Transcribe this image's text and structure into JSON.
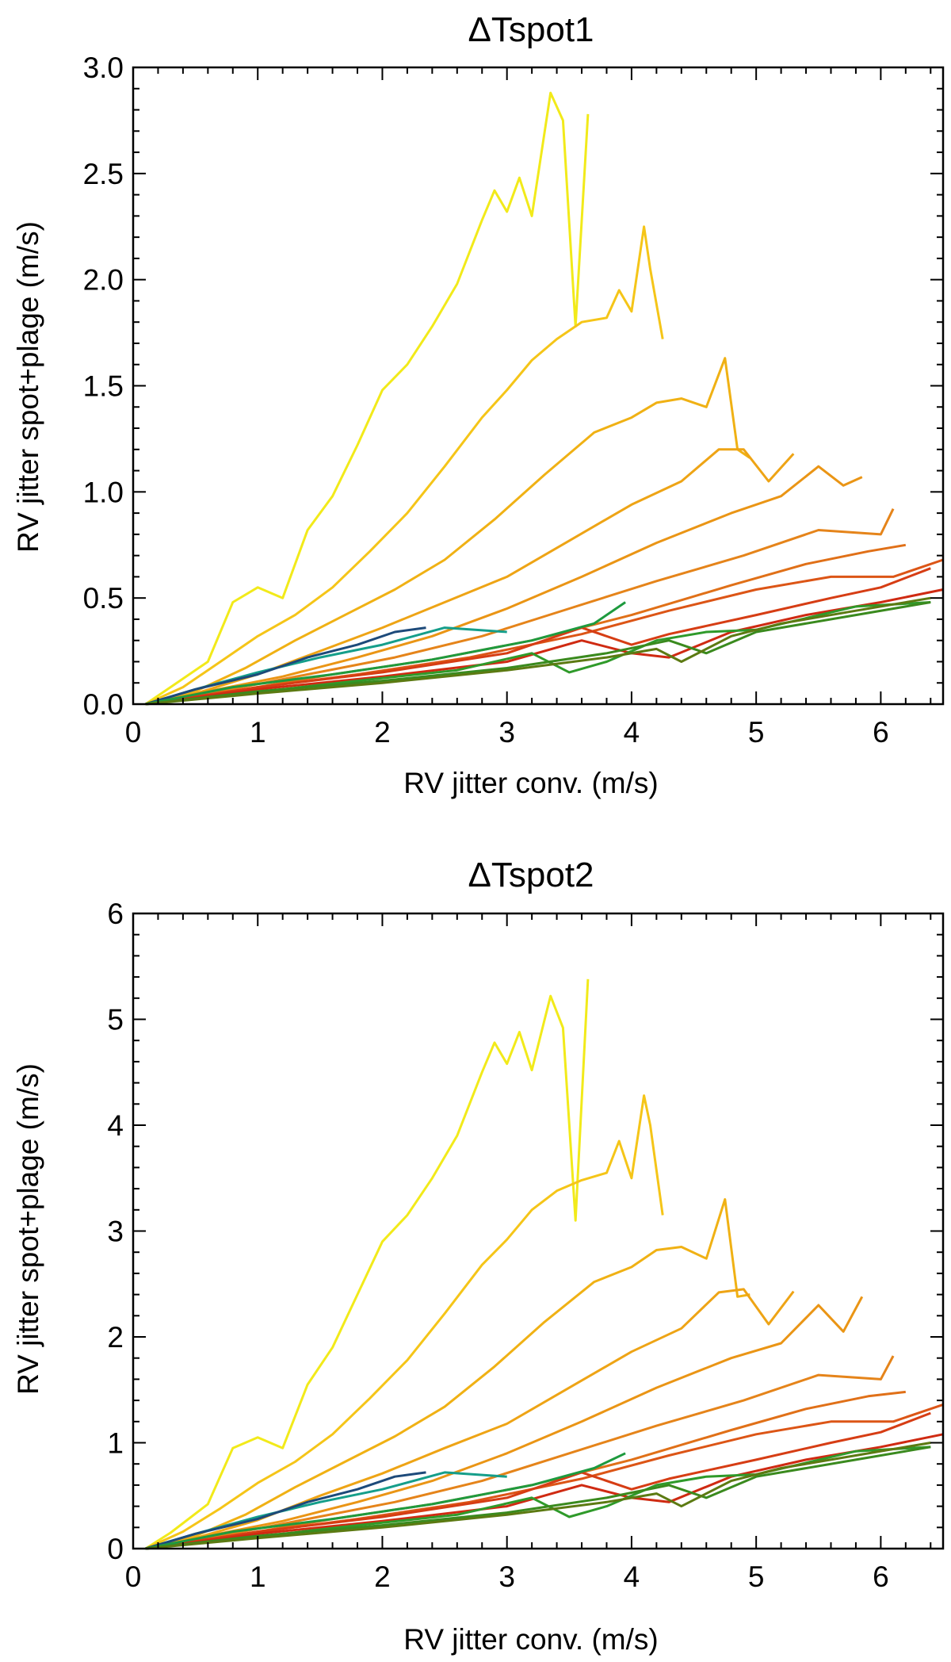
{
  "figure": {
    "panels": [
      "ΔTspot1",
      "ΔTspot2"
    ]
  },
  "chart_data": [
    {
      "type": "line",
      "title": "ΔTspot1",
      "xlabel": "RV jitter conv. (m/s)",
      "ylabel": "RV jitter spot+plage (m/s)",
      "xlim": [
        0,
        6.5
      ],
      "ylim": [
        0,
        3.0
      ],
      "xticks": [
        "0",
        "1",
        "2",
        "3",
        "4",
        "5",
        "6"
      ],
      "yticks": [
        "0.0",
        "0.5",
        "1.0",
        "1.5",
        "2.0",
        "2.5",
        "3.0"
      ],
      "grid": false,
      "series": [
        {
          "name": "yellow",
          "color": "#f2ea1a",
          "x": [
            0.1,
            0.3,
            0.6,
            0.8,
            1.0,
            1.2,
            1.4,
            1.6,
            1.8,
            2.0,
            2.2,
            2.4,
            2.6,
            2.8,
            2.9,
            3.0,
            3.1,
            3.2,
            3.35,
            3.45,
            3.55,
            3.65
          ],
          "y": [
            0.0,
            0.08,
            0.2,
            0.48,
            0.55,
            0.5,
            0.82,
            0.98,
            1.22,
            1.48,
            1.6,
            1.78,
            1.98,
            2.28,
            2.42,
            2.32,
            2.48,
            2.3,
            2.88,
            2.75,
            1.78,
            2.78
          ]
        },
        {
          "name": "gold",
          "color": "#f5c518",
          "x": [
            0.1,
            0.4,
            0.7,
            1.0,
            1.3,
            1.6,
            1.9,
            2.2,
            2.5,
            2.8,
            3.0,
            3.2,
            3.4,
            3.6,
            3.8,
            3.9,
            4.0,
            4.1,
            4.15,
            4.25
          ],
          "y": [
            0.0,
            0.08,
            0.2,
            0.32,
            0.42,
            0.55,
            0.72,
            0.9,
            1.12,
            1.35,
            1.48,
            1.62,
            1.72,
            1.8,
            1.82,
            1.95,
            1.85,
            2.25,
            2.05,
            1.72
          ]
        },
        {
          "name": "amber",
          "color": "#f0b114",
          "x": [
            0.1,
            0.5,
            0.9,
            1.3,
            1.7,
            2.1,
            2.5,
            2.9,
            3.3,
            3.7,
            4.0,
            4.2,
            4.4,
            4.6,
            4.75,
            4.85,
            4.95
          ],
          "y": [
            0.0,
            0.06,
            0.17,
            0.3,
            0.42,
            0.54,
            0.68,
            0.87,
            1.08,
            1.28,
            1.35,
            1.42,
            1.44,
            1.4,
            1.63,
            1.2,
            1.16
          ]
        },
        {
          "name": "orange1",
          "color": "#eea415",
          "x": [
            0.1,
            0.5,
            1.0,
            1.5,
            2.0,
            2.5,
            3.0,
            3.5,
            4.0,
            4.4,
            4.7,
            4.9,
            5.1,
            5.3
          ],
          "y": [
            0.0,
            0.05,
            0.14,
            0.25,
            0.36,
            0.48,
            0.6,
            0.77,
            0.94,
            1.05,
            1.2,
            1.2,
            1.05,
            1.18
          ]
        },
        {
          "name": "orange2",
          "color": "#ea9515",
          "x": [
            0.1,
            0.6,
            1.2,
            1.8,
            2.4,
            3.0,
            3.6,
            4.2,
            4.8,
            5.2,
            5.5,
            5.7,
            5.85
          ],
          "y": [
            0.0,
            0.06,
            0.13,
            0.22,
            0.32,
            0.45,
            0.6,
            0.76,
            0.9,
            0.98,
            1.12,
            1.03,
            1.07
          ]
        },
        {
          "name": "orange3",
          "color": "#e5841a",
          "x": [
            0.1,
            0.7,
            1.4,
            2.1,
            2.8,
            3.5,
            4.2,
            4.9,
            5.5,
            6.0,
            6.1
          ],
          "y": [
            0.0,
            0.06,
            0.14,
            0.22,
            0.32,
            0.45,
            0.58,
            0.7,
            0.82,
            0.8,
            0.92
          ]
        },
        {
          "name": "orange4",
          "color": "#e07018",
          "x": [
            0.1,
            0.8,
            1.6,
            2.4,
            3.2,
            4.0,
            4.8,
            5.4,
            5.9,
            6.2
          ],
          "y": [
            0.0,
            0.06,
            0.14,
            0.21,
            0.3,
            0.42,
            0.56,
            0.66,
            0.72,
            0.75
          ]
        },
        {
          "name": "red1",
          "color": "#dc5516",
          "x": [
            0.1,
            0.9,
            1.8,
            2.7,
            3.6,
            4.3,
            5.0,
            5.6,
            6.1,
            6.5
          ],
          "y": [
            0.0,
            0.07,
            0.14,
            0.22,
            0.33,
            0.44,
            0.54,
            0.6,
            0.6,
            0.68
          ]
        },
        {
          "name": "red2",
          "color": "#d63d14",
          "x": [
            0.1,
            1.0,
            2.0,
            3.0,
            3.6,
            4.0,
            4.3,
            5.0,
            5.6,
            6.0,
            6.4
          ],
          "y": [
            0.0,
            0.08,
            0.15,
            0.24,
            0.36,
            0.28,
            0.33,
            0.42,
            0.5,
            0.55,
            0.64
          ]
        },
        {
          "name": "red3",
          "color": "#cf2a12",
          "x": [
            0.1,
            1.0,
            2.0,
            3.0,
            3.6,
            4.0,
            4.3,
            4.8,
            5.4,
            6.0,
            6.5
          ],
          "y": [
            0.0,
            0.07,
            0.13,
            0.2,
            0.3,
            0.24,
            0.22,
            0.34,
            0.42,
            0.48,
            0.54
          ]
        },
        {
          "name": "teal",
          "color": "#159e8a",
          "x": [
            0.1,
            0.5,
            1.0,
            1.5,
            2.0,
            2.5,
            3.0
          ],
          "y": [
            0.0,
            0.07,
            0.15,
            0.22,
            0.28,
            0.36,
            0.34
          ]
        },
        {
          "name": "navy",
          "color": "#1d4a7a",
          "x": [
            0.1,
            0.5,
            1.0,
            1.4,
            1.8,
            2.1,
            2.35
          ],
          "y": [
            0.0,
            0.07,
            0.14,
            0.22,
            0.28,
            0.34,
            0.36
          ]
        },
        {
          "name": "green1",
          "color": "#1e9a3e",
          "x": [
            0.1,
            0.8,
            1.6,
            2.4,
            3.2,
            3.7,
            3.95
          ],
          "y": [
            0.0,
            0.08,
            0.14,
            0.21,
            0.3,
            0.38,
            0.48
          ]
        },
        {
          "name": "green2",
          "color": "#2f9a2a",
          "x": [
            0.1,
            0.9,
            1.8,
            2.6,
            3.2,
            3.5,
            3.8,
            4.2,
            4.6,
            5.0,
            5.8,
            6.4
          ],
          "y": [
            0.0,
            0.05,
            0.11,
            0.16,
            0.24,
            0.15,
            0.2,
            0.3,
            0.34,
            0.35,
            0.46,
            0.48
          ]
        },
        {
          "name": "green3",
          "color": "#3a8a1e",
          "x": [
            0.1,
            1.0,
            2.0,
            3.0,
            3.8,
            4.3,
            4.6,
            5.0,
            5.8,
            6.4
          ],
          "y": [
            0.0,
            0.06,
            0.11,
            0.17,
            0.24,
            0.3,
            0.24,
            0.34,
            0.42,
            0.48
          ]
        },
        {
          "name": "olive",
          "color": "#5c7a12",
          "x": [
            0.1,
            1.0,
            2.0,
            3.0,
            3.8,
            4.2,
            4.4,
            4.8,
            5.2,
            5.8,
            6.4
          ],
          "y": [
            0.0,
            0.05,
            0.1,
            0.16,
            0.22,
            0.26,
            0.2,
            0.32,
            0.38,
            0.44,
            0.5
          ]
        }
      ]
    },
    {
      "type": "line",
      "title": "ΔTspot2",
      "xlabel": "RV jitter conv. (m/s)",
      "ylabel": "RV jitter spot+plage (m/s)",
      "xlim": [
        0,
        6.5
      ],
      "ylim": [
        0,
        6
      ],
      "xticks": [
        "0",
        "1",
        "2",
        "3",
        "4",
        "5",
        "6"
      ],
      "yticks": [
        "0",
        "1",
        "2",
        "3",
        "4",
        "5",
        "6"
      ],
      "grid": false,
      "series": [
        {
          "name": "yellow",
          "color": "#f2ea1a",
          "x": [
            0.1,
            0.3,
            0.6,
            0.8,
            1.0,
            1.2,
            1.4,
            1.6,
            1.8,
            2.0,
            2.2,
            2.4,
            2.6,
            2.8,
            2.9,
            3.0,
            3.1,
            3.2,
            3.35,
            3.45,
            3.55,
            3.65
          ],
          "y": [
            0.0,
            0.15,
            0.42,
            0.95,
            1.05,
            0.95,
            1.55,
            1.9,
            2.4,
            2.9,
            3.15,
            3.5,
            3.9,
            4.5,
            4.78,
            4.58,
            4.88,
            4.52,
            5.22,
            4.92,
            3.1,
            5.38
          ]
        },
        {
          "name": "gold",
          "color": "#f5c518",
          "x": [
            0.1,
            0.4,
            0.7,
            1.0,
            1.3,
            1.6,
            1.9,
            2.2,
            2.5,
            2.8,
            3.0,
            3.2,
            3.4,
            3.6,
            3.8,
            3.9,
            4.0,
            4.1,
            4.15,
            4.25
          ],
          "y": [
            0.0,
            0.16,
            0.38,
            0.62,
            0.82,
            1.08,
            1.42,
            1.78,
            2.22,
            2.68,
            2.92,
            3.2,
            3.38,
            3.48,
            3.55,
            3.85,
            3.5,
            4.28,
            4.0,
            3.15
          ]
        },
        {
          "name": "amber",
          "color": "#f0b114",
          "x": [
            0.1,
            0.5,
            0.9,
            1.3,
            1.7,
            2.1,
            2.5,
            2.9,
            3.3,
            3.7,
            4.0,
            4.2,
            4.4,
            4.6,
            4.75,
            4.85,
            4.95
          ],
          "y": [
            0.0,
            0.12,
            0.32,
            0.58,
            0.82,
            1.06,
            1.34,
            1.72,
            2.14,
            2.52,
            2.66,
            2.82,
            2.85,
            2.74,
            3.3,
            2.38,
            2.4
          ]
        },
        {
          "name": "orange1",
          "color": "#eea415",
          "x": [
            0.1,
            0.5,
            1.0,
            1.5,
            2.0,
            2.5,
            3.0,
            3.5,
            4.0,
            4.4,
            4.7,
            4.9,
            5.1,
            5.3
          ],
          "y": [
            0.0,
            0.1,
            0.27,
            0.5,
            0.71,
            0.95,
            1.18,
            1.52,
            1.86,
            2.08,
            2.42,
            2.45,
            2.12,
            2.43
          ]
        },
        {
          "name": "orange2",
          "color": "#ea9515",
          "x": [
            0.1,
            0.6,
            1.2,
            1.8,
            2.4,
            3.0,
            3.6,
            4.2,
            4.8,
            5.2,
            5.5,
            5.7,
            5.85
          ],
          "y": [
            0.0,
            0.12,
            0.26,
            0.44,
            0.64,
            0.9,
            1.2,
            1.52,
            1.8,
            1.94,
            2.3,
            2.05,
            2.38
          ]
        },
        {
          "name": "orange3",
          "color": "#e5841a",
          "x": [
            0.1,
            0.7,
            1.4,
            2.1,
            2.8,
            3.5,
            4.2,
            4.9,
            5.5,
            6.0,
            6.1
          ],
          "y": [
            0.0,
            0.12,
            0.28,
            0.44,
            0.64,
            0.9,
            1.16,
            1.4,
            1.64,
            1.6,
            1.82
          ]
        },
        {
          "name": "orange4",
          "color": "#e07018",
          "x": [
            0.1,
            0.8,
            1.6,
            2.4,
            3.2,
            4.0,
            4.8,
            5.4,
            5.9,
            6.2
          ],
          "y": [
            0.0,
            0.12,
            0.28,
            0.42,
            0.6,
            0.84,
            1.12,
            1.32,
            1.44,
            1.48
          ]
        },
        {
          "name": "red1",
          "color": "#dc5516",
          "x": [
            0.1,
            0.9,
            1.8,
            2.7,
            3.6,
            4.3,
            5.0,
            5.6,
            6.1,
            6.5
          ],
          "y": [
            0.0,
            0.14,
            0.28,
            0.44,
            0.66,
            0.88,
            1.08,
            1.2,
            1.2,
            1.36
          ]
        },
        {
          "name": "red2",
          "color": "#d63d14",
          "x": [
            0.1,
            1.0,
            2.0,
            3.0,
            3.6,
            4.0,
            4.3,
            5.0,
            5.6,
            6.0,
            6.4
          ],
          "y": [
            0.0,
            0.16,
            0.3,
            0.48,
            0.72,
            0.56,
            0.66,
            0.84,
            1.0,
            1.1,
            1.28
          ]
        },
        {
          "name": "red3",
          "color": "#cf2a12",
          "x": [
            0.1,
            1.0,
            2.0,
            3.0,
            3.6,
            4.0,
            4.3,
            4.8,
            5.4,
            6.0,
            6.5
          ],
          "y": [
            0.0,
            0.14,
            0.26,
            0.4,
            0.6,
            0.48,
            0.44,
            0.68,
            0.84,
            0.96,
            1.08
          ]
        },
        {
          "name": "teal",
          "color": "#159e8a",
          "x": [
            0.1,
            0.5,
            1.0,
            1.5,
            2.0,
            2.5,
            3.0
          ],
          "y": [
            0.0,
            0.14,
            0.3,
            0.44,
            0.56,
            0.72,
            0.68
          ]
        },
        {
          "name": "navy",
          "color": "#1d4a7a",
          "x": [
            0.1,
            0.5,
            1.0,
            1.4,
            1.8,
            2.1,
            2.35
          ],
          "y": [
            0.0,
            0.14,
            0.28,
            0.44,
            0.56,
            0.68,
            0.72
          ]
        },
        {
          "name": "green1",
          "color": "#1e9a3e",
          "x": [
            0.1,
            0.8,
            1.6,
            2.4,
            3.2,
            3.7,
            3.95
          ],
          "y": [
            0.0,
            0.16,
            0.28,
            0.42,
            0.6,
            0.76,
            0.9
          ]
        },
        {
          "name": "green2",
          "color": "#2f9a2a",
          "x": [
            0.1,
            0.9,
            1.8,
            2.6,
            3.2,
            3.5,
            3.8,
            4.2,
            4.6,
            5.0,
            5.8,
            6.4
          ],
          "y": [
            0.0,
            0.1,
            0.22,
            0.32,
            0.48,
            0.3,
            0.4,
            0.6,
            0.68,
            0.7,
            0.92,
            0.96
          ]
        },
        {
          "name": "green3",
          "color": "#3a8a1e",
          "x": [
            0.1,
            1.0,
            2.0,
            3.0,
            3.8,
            4.3,
            4.6,
            5.0,
            5.8,
            6.4
          ],
          "y": [
            0.0,
            0.12,
            0.22,
            0.34,
            0.48,
            0.6,
            0.48,
            0.68,
            0.84,
            0.96
          ]
        },
        {
          "name": "olive",
          "color": "#5c7a12",
          "x": [
            0.1,
            1.0,
            2.0,
            3.0,
            3.8,
            4.2,
            4.4,
            4.8,
            5.2,
            5.8,
            6.4
          ],
          "y": [
            0.0,
            0.1,
            0.2,
            0.32,
            0.44,
            0.52,
            0.4,
            0.64,
            0.76,
            0.88,
            1.0
          ]
        }
      ]
    }
  ]
}
